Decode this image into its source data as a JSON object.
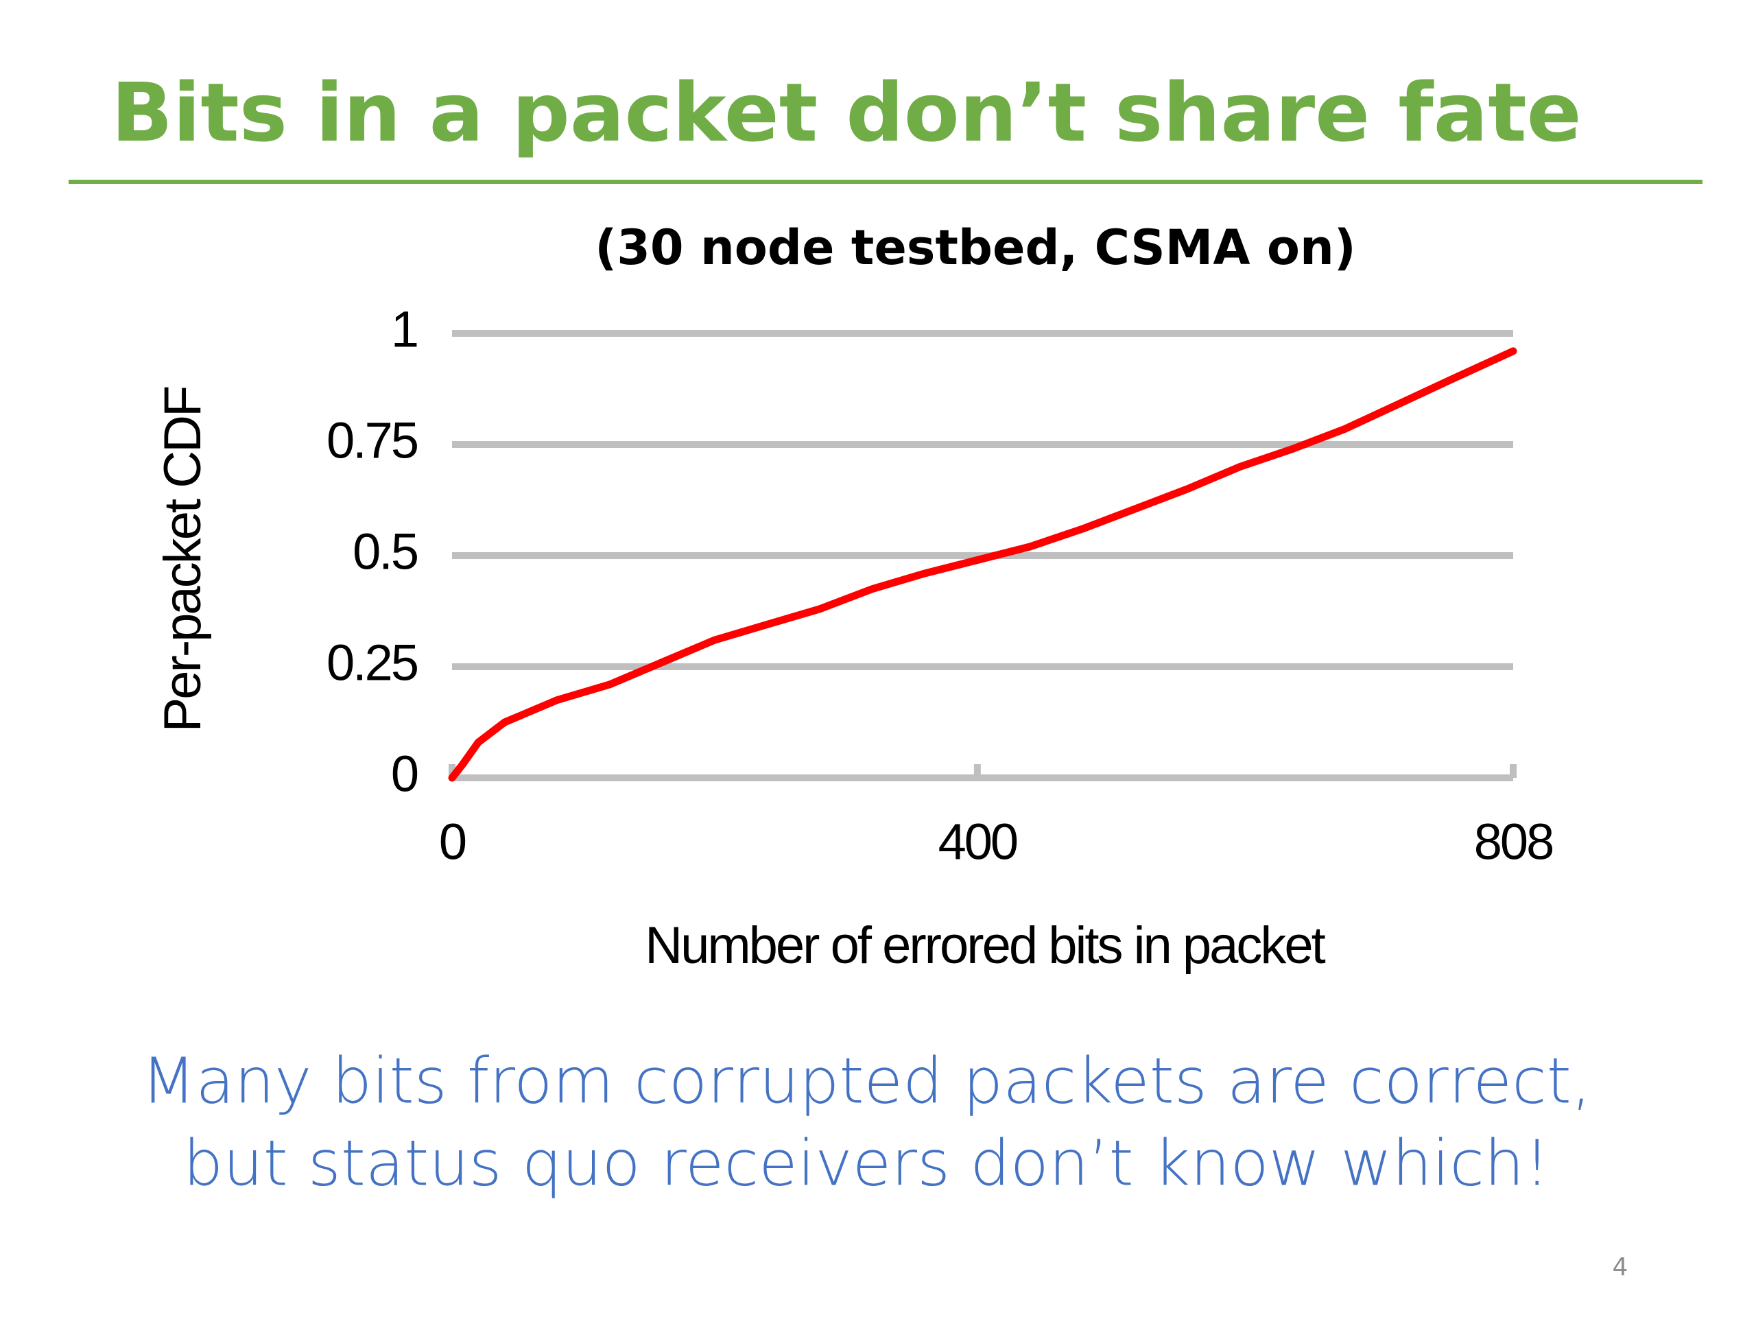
{
  "title": "Bits in a packet don’t share fate",
  "chart_data": {
    "type": "line",
    "title": "(30 node testbed, CSMA on)",
    "x_label": "Number of errored bits in packet",
    "y_label": "Per-packet CDF",
    "x": [
      0,
      8,
      20,
      40,
      80,
      120,
      160,
      200,
      240,
      280,
      320,
      360,
      400,
      440,
      480,
      520,
      560,
      600,
      640,
      680,
      720,
      760,
      808
    ],
    "values": [
      0,
      0.03,
      0.08,
      0.125,
      0.175,
      0.21,
      0.26,
      0.31,
      0.345,
      0.38,
      0.425,
      0.46,
      0.49,
      0.52,
      0.56,
      0.605,
      0.65,
      0.7,
      0.74,
      0.785,
      0.84,
      0.895,
      0.96
    ],
    "color": "#ff0000",
    "xlim": [
      0,
      808
    ],
    "xticks": [
      0,
      400,
      808
    ],
    "ylim": [
      0,
      1
    ],
    "yticks": [
      0,
      0.25,
      0.5,
      0.75,
      1
    ],
    "grid": true
  },
  "caption": [
    "Many bits from corrupted packets are correct,",
    "but status quo receivers don’t know which!"
  ],
  "page_number": "4"
}
